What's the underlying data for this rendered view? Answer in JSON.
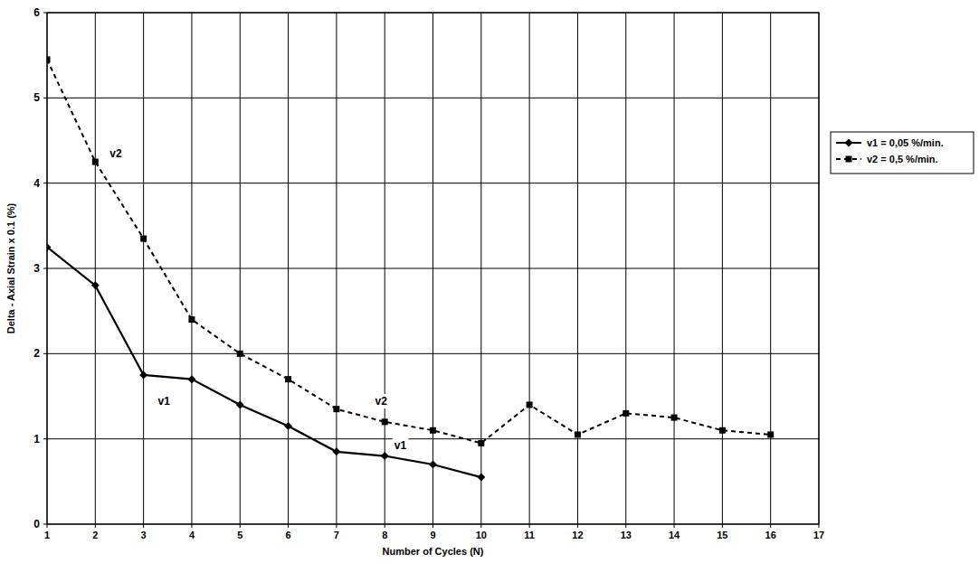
{
  "chart_data": {
    "type": "line",
    "x_label": "Number of Cycles (N)",
    "y_label": "Delta - Axial Strain x 0.1 (%)",
    "xlim": [
      1,
      17
    ],
    "xticks": [
      1,
      2,
      3,
      4,
      5,
      6,
      7,
      8,
      9,
      10,
      11,
      12,
      13,
      14,
      15,
      16,
      17
    ],
    "ylim": [
      0,
      6
    ],
    "yticks": [
      0,
      1,
      2,
      3,
      4,
      5,
      6
    ],
    "grid": true,
    "legend": "right",
    "series": [
      {
        "name": "v1 = 0,05 %/min.",
        "color": "#000000",
        "marker": "diamond",
        "line_style": "solid",
        "x": [
          1,
          2,
          3,
          4,
          5,
          6,
          7,
          8,
          9,
          10
        ],
        "values": [
          3.25,
          2.8,
          1.75,
          1.7,
          1.4,
          1.15,
          0.85,
          0.8,
          0.7,
          0.55
        ]
      },
      {
        "name": "v2 = 0,5 %/min.",
        "color": "#000000",
        "marker": "square",
        "line_style": "dashed",
        "x": [
          1,
          2,
          3,
          4,
          5,
          6,
          7,
          8,
          9,
          10,
          11,
          12,
          13,
          14,
          15,
          16
        ],
        "values": [
          5.45,
          4.25,
          3.35,
          2.4,
          2.0,
          1.7,
          1.35,
          1.2,
          1.1,
          0.95,
          1.4,
          1.05,
          1.3,
          1.25,
          1.1,
          1.05
        ]
      }
    ],
    "annotations": [
      {
        "text": "v2",
        "x": 2.3,
        "y": 4.3
      },
      {
        "text": "v1",
        "x": 3.3,
        "y": 1.4
      },
      {
        "text": "v2",
        "x": 7.8,
        "y": 1.4
      },
      {
        "text": "v1",
        "x": 8.2,
        "y": 0.88
      }
    ]
  }
}
